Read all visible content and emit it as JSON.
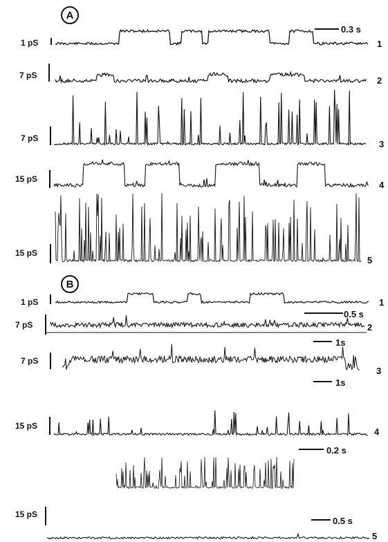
{
  "panels": [
    {
      "label": "A",
      "traces": [
        {
          "number": "1",
          "scale": "1 pS",
          "time_scale": "0.3 s"
        },
        {
          "number": "2",
          "scale": "7 pS",
          "time_scale": ""
        },
        {
          "number": "3",
          "scale": "7 pS",
          "time_scale": ""
        },
        {
          "number": "4",
          "scale": "15 pS",
          "time_scale": ""
        },
        {
          "number": "5",
          "scale": "15 pS",
          "time_scale": ""
        }
      ]
    },
    {
      "label": "B",
      "traces": [
        {
          "number": "1",
          "scale": "1 pS",
          "time_scale": "0.5 s"
        },
        {
          "number": "2",
          "scale": "7 pS",
          "time_scale": "1s"
        },
        {
          "number": "3",
          "scale": "7 pS",
          "time_scale": "1s"
        },
        {
          "number": "4",
          "scale": "15 pS",
          "time_scale": "0.2 s"
        },
        {
          "number": "5",
          "scale": "15 pS",
          "time_scale": "0.5 s"
        }
      ]
    }
  ],
  "colors": {
    "ink": "#111111",
    "background": "#ffffff"
  }
}
